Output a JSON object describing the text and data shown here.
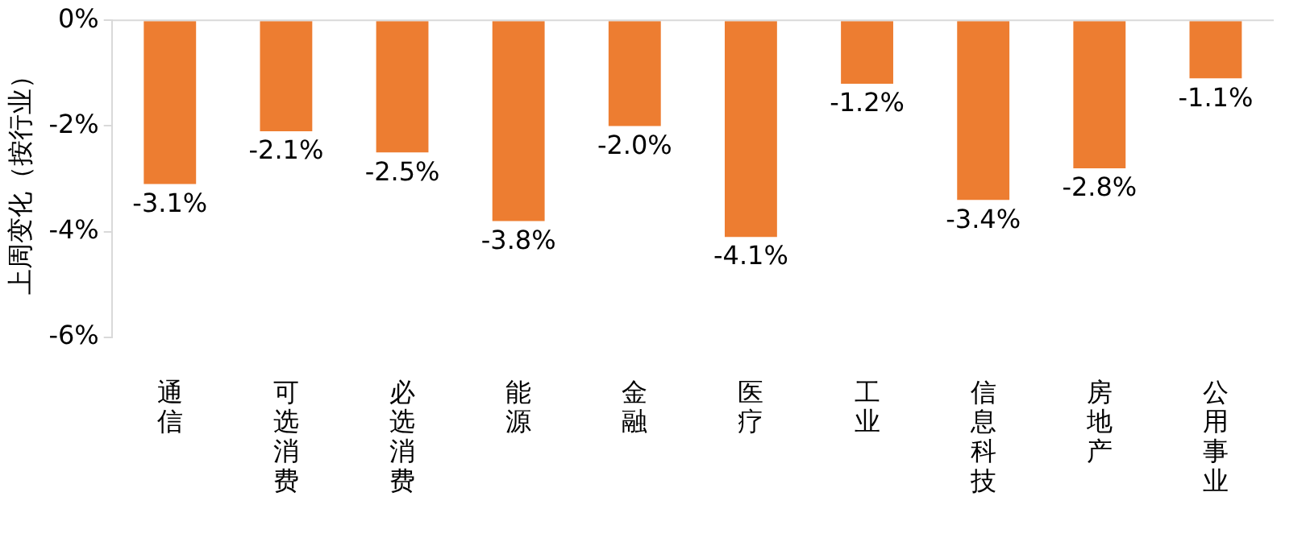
{
  "chart_data": {
    "type": "bar",
    "ylabel": "上周变化（按行业）",
    "categories": [
      "通信",
      "可选消费",
      "必选消费",
      "能源",
      "金融",
      "医疗",
      "工业",
      "信息科技",
      "房地产",
      "公用事业"
    ],
    "values": [
      -3.1,
      -2.1,
      -2.5,
      -3.8,
      -2.0,
      -4.1,
      -1.2,
      -3.4,
      -2.8,
      -1.1
    ],
    "value_labels": [
      "-3.1%",
      "-2.1%",
      "-2.5%",
      "-3.8%",
      "-2.0%",
      "-4.1%",
      "-1.2%",
      "-3.4%",
      "-2.8%",
      "-1.1%"
    ],
    "color": "#ed7d31",
    "ylim": [
      -6,
      0
    ],
    "yticks": [
      {
        "value": 0,
        "label": "0%"
      },
      {
        "value": -2,
        "label": "-2%"
      },
      {
        "value": -4,
        "label": "-4%"
      },
      {
        "value": -6,
        "label": "-6%"
      }
    ],
    "grid": false,
    "legend": false
  }
}
